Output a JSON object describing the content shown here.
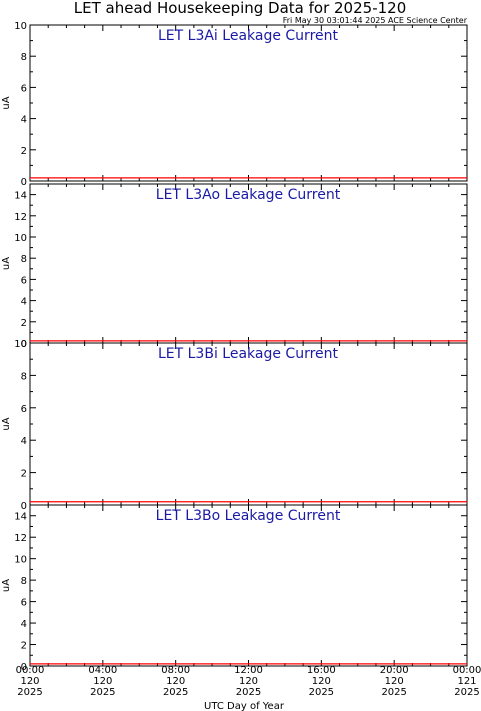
{
  "title": "LET ahead Housekeeping Data for 2025-120",
  "timestamp": "Fri May 30 03:01:44 2025 ACE Science Center",
  "xlabel": "UTC Day of Year",
  "colors": {
    "axis": "#000000",
    "panel_title": "#1a1aa6",
    "data_line": "#ff0000"
  },
  "x_ticks": [
    {
      "time": "00:00",
      "doy": "120",
      "year": "2025"
    },
    {
      "time": "04:00",
      "doy": "120",
      "year": "2025"
    },
    {
      "time": "08:00",
      "doy": "120",
      "year": "2025"
    },
    {
      "time": "12:00",
      "doy": "120",
      "year": "2025"
    },
    {
      "time": "16:00",
      "doy": "120",
      "year": "2025"
    },
    {
      "time": "20:00",
      "doy": "120",
      "year": "2025"
    },
    {
      "time": "00:00",
      "doy": "121",
      "year": "2025"
    }
  ],
  "chart_data": [
    {
      "type": "line",
      "title": "LET L3Ai Leakage Current",
      "ylabel": "uA",
      "ylim": [
        0,
        10
      ],
      "yticks": [
        0,
        2,
        4,
        6,
        8,
        10
      ],
      "xlim_hours": [
        0,
        24
      ],
      "series": [
        {
          "x": [
            0,
            24
          ],
          "values": [
            0.2,
            0.2
          ]
        }
      ]
    },
    {
      "type": "line",
      "title": "LET L3Ao Leakage Current",
      "ylabel": "uA",
      "ylim": [
        0,
        15
      ],
      "yticks": [
        0,
        2,
        4,
        6,
        8,
        10,
        12,
        14
      ],
      "xlim_hours": [
        0,
        24
      ],
      "series": [
        {
          "x": [
            0,
            24
          ],
          "values": [
            0.2,
            0.2
          ]
        }
      ]
    },
    {
      "type": "line",
      "title": "LET L3Bi Leakage Current",
      "ylabel": "uA",
      "ylim": [
        0,
        10
      ],
      "yticks": [
        0,
        2,
        4,
        6,
        8,
        10
      ],
      "xlim_hours": [
        0,
        24
      ],
      "series": [
        {
          "x": [
            0,
            24
          ],
          "values": [
            0.2,
            0.2
          ]
        }
      ]
    },
    {
      "type": "line",
      "title": "LET L3Bo Leakage Current",
      "ylabel": "uA",
      "ylim": [
        0,
        15
      ],
      "yticks": [
        0,
        2,
        4,
        6,
        8,
        10,
        12,
        14
      ],
      "xlim_hours": [
        0,
        24
      ],
      "series": [
        {
          "x": [
            0,
            24
          ],
          "values": [
            0.2,
            0.2
          ]
        }
      ]
    }
  ]
}
